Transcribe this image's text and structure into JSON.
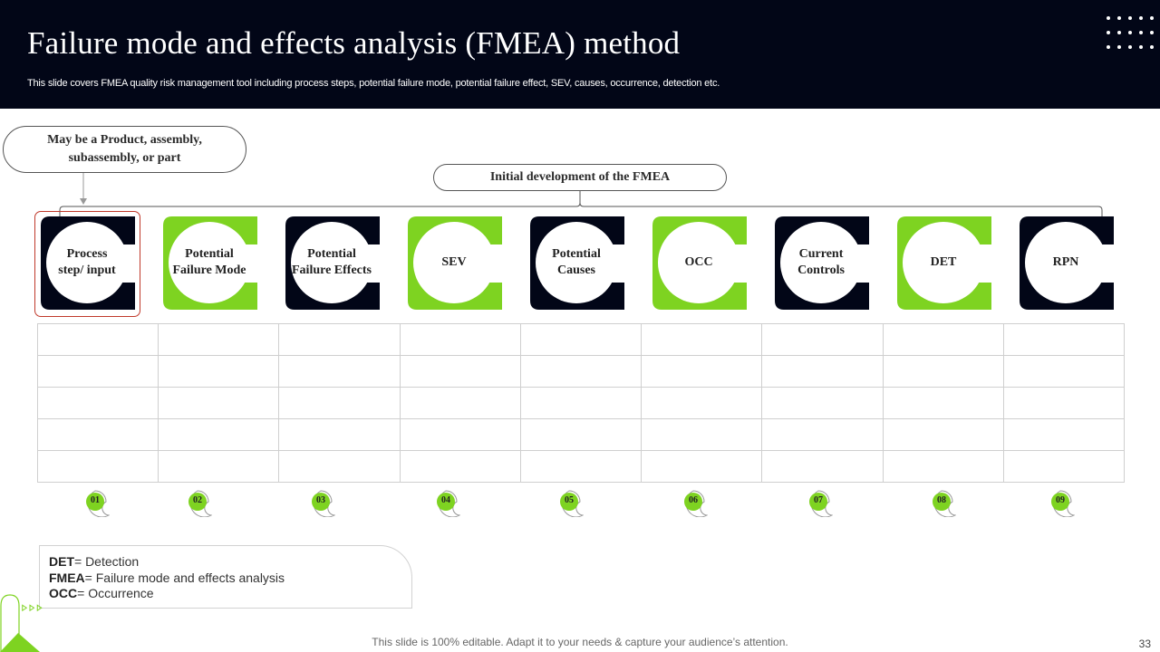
{
  "slide": {
    "title": "Failure mode and  effects analysis (FMEA) method",
    "subtitle": "This slide covers FMEA  quality risk management tool including process steps, potential failure mode, potential failure effect, SEV,  causes, occurrence, detection etc.",
    "footer": "This slide is 100% editable. Adapt it to your needs & capture your audience’s attention.",
    "page_number": "33"
  },
  "callout": {
    "line1": "May be a Product,  assembly,",
    "line2": "subassembly, or part"
  },
  "initial_label": "Initial  development  of the FMEA",
  "colors": {
    "dark": "#020617",
    "green": "#7ed321",
    "white": "#ffffff",
    "highlight": "#c0392b"
  },
  "steps": [
    {
      "line1": "Process",
      "line2": "step/ input",
      "color": "dark"
    },
    {
      "line1": "Potential",
      "line2": "Failure Mode",
      "color": "green"
    },
    {
      "line1": "Potential",
      "line2": "Failure Effects",
      "color": "dark"
    },
    {
      "line1": "SEV",
      "line2": "",
      "color": "green"
    },
    {
      "line1": "Potential",
      "line2": "Causes",
      "color": "dark"
    },
    {
      "line1": "OCC",
      "line2": "",
      "color": "green"
    },
    {
      "line1": "Current",
      "line2": "Controls",
      "color": "dark"
    },
    {
      "line1": "DET",
      "line2": "",
      "color": "green"
    },
    {
      "line1": "RPN",
      "line2": "",
      "color": "dark"
    }
  ],
  "badges": [
    "01",
    "02",
    "03",
    "04",
    "05",
    "06",
    "07",
    "08",
    "09"
  ],
  "legend": [
    {
      "term": "DET",
      "definition": "= Detection"
    },
    {
      "term": "FMEA",
      "definition": "= Failure mode and effects analysis"
    },
    {
      "term": "OCC",
      "definition": "= Occurrence"
    }
  ]
}
